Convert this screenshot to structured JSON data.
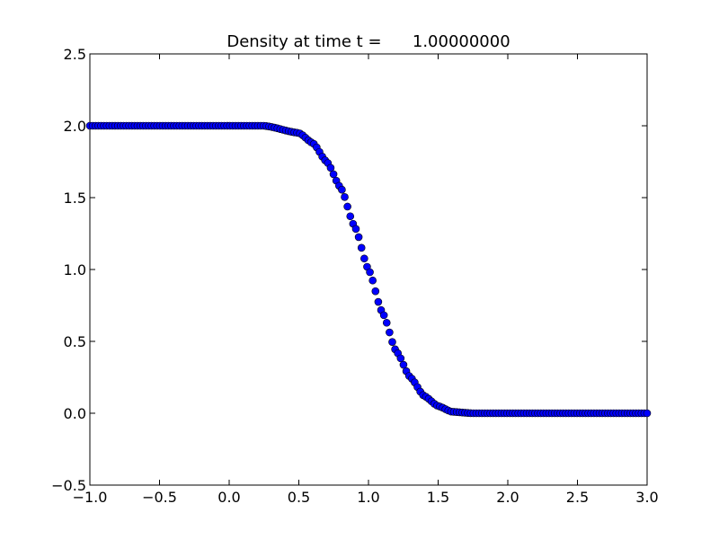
{
  "chart_data": {
    "type": "scatter",
    "title": "Density at time t =      1.00000000",
    "xlabel": "",
    "ylabel": "",
    "xlim": [
      -1.0,
      3.0
    ],
    "ylim": [
      -0.5,
      2.5
    ],
    "x_ticks": [
      "−1.0",
      "−0.5",
      "0.0",
      "0.5",
      "1.0",
      "1.5",
      "2.0",
      "2.5",
      "3.0"
    ],
    "y_ticks": [
      "−0.5",
      "0.0",
      "0.5",
      "1.0",
      "1.5",
      "2.0",
      "2.5"
    ],
    "grid": false,
    "legend": "none",
    "marker_color": "#0000ff",
    "marker_edge_color": "#000000",
    "series": [
      {
        "x_start": -1.0,
        "x_end": 3.0,
        "point_count": 200,
        "profile": "smooth step from 2.0 (x < ~0.25) to 0.0 (x > ~1.75), midpoint 1.0 at x = 1.0",
        "y_left": 2.0,
        "y_right": 0.0,
        "center": 1.0,
        "sample_points": [
          [
            -1.0,
            2.0
          ],
          [
            0.0,
            2.0
          ],
          [
            0.25,
            2.0
          ],
          [
            0.5,
            1.95
          ],
          [
            0.6,
            1.88
          ],
          [
            0.7,
            1.75
          ],
          [
            0.8,
            1.57
          ],
          [
            0.9,
            1.3
          ],
          [
            1.0,
            1.0
          ],
          [
            1.1,
            0.7
          ],
          [
            1.2,
            0.43
          ],
          [
            1.3,
            0.25
          ],
          [
            1.4,
            0.12
          ],
          [
            1.5,
            0.05
          ],
          [
            1.6,
            0.01
          ],
          [
            1.75,
            0.0
          ],
          [
            2.0,
            0.0
          ],
          [
            3.0,
            0.0
          ]
        ]
      }
    ]
  }
}
